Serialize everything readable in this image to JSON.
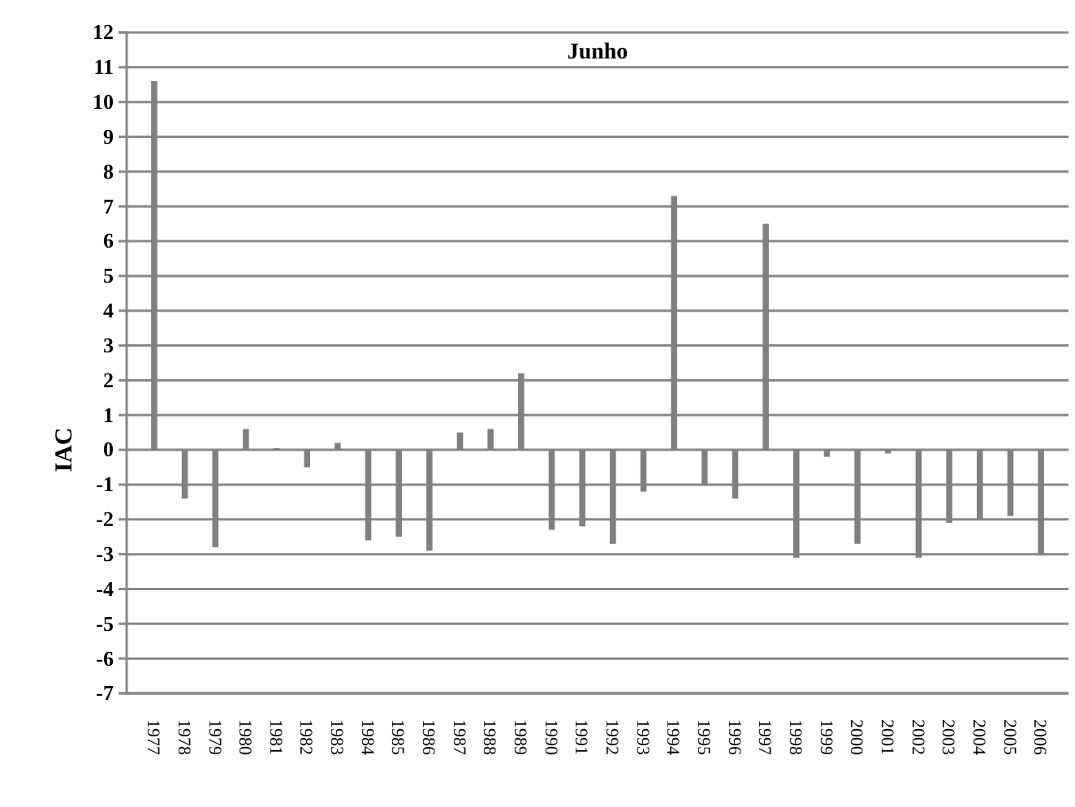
{
  "chart_data": {
    "type": "bar",
    "title": "Junho",
    "ylabel": "IAC",
    "categories": [
      "1977",
      "1978",
      "1979",
      "1980",
      "1981",
      "1982",
      "1983",
      "1984",
      "1985",
      "1986",
      "1987",
      "1988",
      "1989",
      "1990",
      "1991",
      "1992",
      "1993",
      "1994",
      "1995",
      "1996",
      "1997",
      "1998",
      "1999",
      "2000",
      "2001",
      "2002",
      "2003",
      "2004",
      "2005",
      "2006"
    ],
    "values": [
      10.6,
      -1.4,
      -2.8,
      0.6,
      0.05,
      -0.5,
      0.2,
      -2.6,
      -2.5,
      -2.9,
      0.5,
      0.6,
      2.2,
      -2.3,
      -2.2,
      -2.7,
      -1.2,
      7.3,
      -1.0,
      -1.4,
      6.5,
      -3.1,
      -0.2,
      -2.7,
      -0.1,
      -3.1,
      -2.1,
      -2.0,
      -1.9,
      -3.0
    ],
    "color": "#808080",
    "ylim": [
      -7,
      12
    ],
    "yticks": [
      -7,
      -6,
      -5,
      -4,
      -3,
      -2,
      -1,
      0,
      1,
      2,
      3,
      4,
      5,
      6,
      7,
      8,
      9,
      10,
      11,
      12
    ],
    "grid": "y"
  }
}
